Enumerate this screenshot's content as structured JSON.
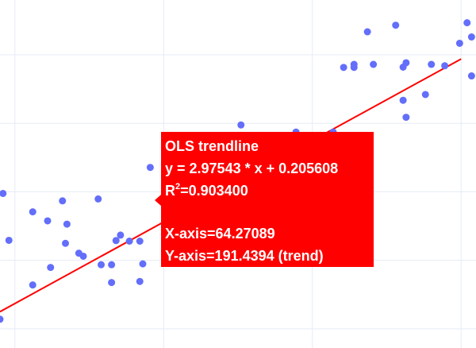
{
  "chart_data": {
    "type": "scatter",
    "title": "",
    "xlabel": "",
    "ylabel": "",
    "grid": true,
    "colors": {
      "points": "#636efa",
      "trendline": "#ff0000",
      "tooltip_bg": "#ff0000",
      "tooltip_text": "#ffffff",
      "grid": "#e5ecf6"
    },
    "xlim": [
      39,
      71
    ],
    "ylim": [
      103,
      230
    ],
    "x_gridlines": [
      40,
      50,
      60,
      70
    ],
    "y_gridlines": [
      110,
      135,
      160,
      185,
      210
    ],
    "series": [
      {
        "points": [
          {
            "x": 39.0,
            "y": 113.5
          },
          {
            "x": 39.2,
            "y": 159.4
          },
          {
            "x": 39.6,
            "y": 142.3
          },
          {
            "x": 41.2,
            "y": 152.7
          },
          {
            "x": 41.2,
            "y": 126.0
          },
          {
            "x": 42.2,
            "y": 149.4
          },
          {
            "x": 42.4,
            "y": 132.4
          },
          {
            "x": 43.2,
            "y": 156.7
          },
          {
            "x": 43.5,
            "y": 148.2
          },
          {
            "x": 43.4,
            "y": 141.2
          },
          {
            "x": 44.3,
            "y": 137.6
          },
          {
            "x": 44.6,
            "y": 136.5
          },
          {
            "x": 45.6,
            "y": 157.4
          },
          {
            "x": 45.8,
            "y": 133.4
          },
          {
            "x": 46.5,
            "y": 133.4
          },
          {
            "x": 46.5,
            "y": 126.9
          },
          {
            "x": 46.8,
            "y": 142.2
          },
          {
            "x": 47.1,
            "y": 144.2
          },
          {
            "x": 47.7,
            "y": 142.0
          },
          {
            "x": 48.4,
            "y": 142.0
          },
          {
            "x": 48.4,
            "y": 127.3
          },
          {
            "x": 48.6,
            "y": 133.7
          },
          {
            "x": 49.1,
            "y": 168.9
          },
          {
            "x": 55.2,
            "y": 184.4
          },
          {
            "x": 56.5,
            "y": 180.6
          },
          {
            "x": 58.9,
            "y": 181.8
          },
          {
            "x": 60.4,
            "y": 180.6
          },
          {
            "x": 61.4,
            "y": 181.8
          },
          {
            "x": 62.1,
            "y": 205.4
          },
          {
            "x": 62.8,
            "y": 205.4
          },
          {
            "x": 62.8,
            "y": 206.5
          },
          {
            "x": 63.7,
            "y": 218.4
          },
          {
            "x": 64.1,
            "y": 206.5
          },
          {
            "x": 65.6,
            "y": 220.8
          },
          {
            "x": 66.1,
            "y": 205.5
          },
          {
            "x": 66.3,
            "y": 207.1
          },
          {
            "x": 66.1,
            "y": 193.4
          },
          {
            "x": 66.3,
            "y": 187.2
          },
          {
            "x": 67.6,
            "y": 195.5
          },
          {
            "x": 68.0,
            "y": 206.5
          },
          {
            "x": 68.9,
            "y": 206.0
          },
          {
            "x": 69.9,
            "y": 214.2
          },
          {
            "x": 70.4,
            "y": 221.7
          },
          {
            "x": 70.7,
            "y": 202.3
          },
          {
            "x": 70.7,
            "y": 216.5
          }
        ]
      }
    ],
    "trendline": {
      "slope": 2.97543,
      "intercept": 0.205608,
      "x_range": [
        39,
        70
      ]
    },
    "tooltip": {
      "title": "OLS trendline",
      "equation": "y = 2.97543 * x + 0.205608",
      "r2_label": "R",
      "r2_exponent": "2",
      "r2_value": "=0.903400",
      "x_line": "X-axis=64.27089",
      "y_line": "Y-axis=191.4394 (trend)"
    }
  }
}
